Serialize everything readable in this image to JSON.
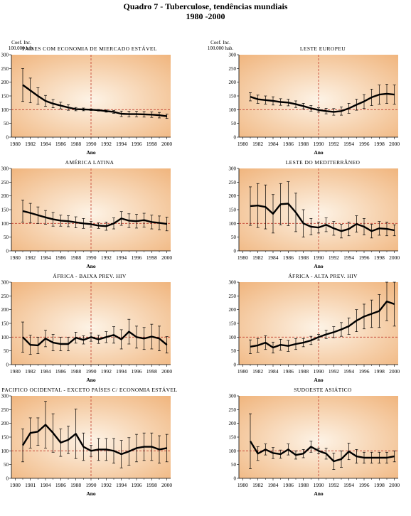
{
  "page": {
    "title_line1": "Quadro 7 - Tuberculose,  tendências mundiais",
    "title_line2": "1980 -2000",
    "ylabel_line1": "Coef. Inc.",
    "ylabel_line2": "100.000 hab.",
    "xlabel": "Ano"
  },
  "style": {
    "line_color": "#000000",
    "ref_line_color": "#c0392b",
    "bg_center": "#fdf3e6",
    "bg_edge": "#f0b47c"
  },
  "chart_data": [
    {
      "type": "line",
      "title": "PAÍSES COM ECONOMIA DE MIERCADO ESTÁVEL",
      "xlabel": "Ano",
      "ylabel": "Coef. Inc. 100.000 hab.",
      "x_ticks": [
        1980,
        1982,
        1984,
        1986,
        1988,
        1990,
        1992,
        1994,
        1996,
        1998,
        2000
      ],
      "y_ticks": [
        0,
        50,
        100,
        150,
        200,
        250,
        300
      ],
      "xlim": [
        1979.5,
        2000.5
      ],
      "ylim": [
        0,
        300
      ],
      "reference_line_y": 100,
      "reference_line_x": 1990,
      "x": [
        1981,
        1982,
        1983,
        1984,
        1985,
        1986,
        1987,
        1988,
        1989,
        1990,
        1991,
        1992,
        1993,
        1994,
        1995,
        1996,
        1997,
        1998,
        1999,
        2000
      ],
      "values": [
        190,
        170,
        150,
        132,
        122,
        115,
        108,
        102,
        101,
        100,
        98,
        95,
        92,
        85,
        84,
        84,
        83,
        82,
        80,
        76
      ],
      "error": [
        60,
        45,
        30,
        20,
        15,
        12,
        10,
        6,
        5,
        3,
        3,
        4,
        5,
        10,
        10,
        10,
        10,
        10,
        10,
        8
      ]
    },
    {
      "type": "line",
      "title": "LESTE EUROPEU",
      "xlabel": "Ano",
      "x_ticks": [
        1980,
        1982,
        1984,
        1986,
        1988,
        1990,
        1992,
        1994,
        1996,
        1998,
        2000
      ],
      "y_ticks": [
        0,
        50,
        100,
        150,
        200,
        250,
        300
      ],
      "xlim": [
        1979.5,
        2000.5
      ],
      "ylim": [
        0,
        300
      ],
      "reference_line_y": 100,
      "reference_line_x": 1990,
      "x": [
        1981,
        1982,
        1983,
        1984,
        1985,
        1986,
        1987,
        1988,
        1989,
        1990,
        1991,
        1992,
        1993,
        1994,
        1995,
        1996,
        1997,
        1998,
        1999,
        2000
      ],
      "values": [
        147,
        138,
        135,
        132,
        128,
        126,
        120,
        113,
        105,
        99,
        95,
        92,
        95,
        105,
        118,
        130,
        145,
        155,
        158,
        155
      ],
      "error": [
        15,
        15,
        15,
        15,
        12,
        12,
        12,
        10,
        10,
        8,
        10,
        12,
        15,
        18,
        20,
        25,
        30,
        35,
        35,
        35
      ]
    },
    {
      "type": "line",
      "title": "AMÉRICA LATINA",
      "xlabel": "Ano",
      "x_ticks": [
        1980,
        1982,
        1984,
        1986,
        1988,
        1990,
        1992,
        1994,
        1996,
        1998,
        2000
      ],
      "y_ticks": [
        0,
        50,
        100,
        150,
        200,
        250,
        300
      ],
      "xlim": [
        1979.5,
        2000.5
      ],
      "ylim": [
        0,
        300
      ],
      "reference_line_y": 100,
      "reference_line_x": 1990,
      "x": [
        1981,
        1982,
        1983,
        1984,
        1985,
        1986,
        1987,
        1988,
        1989,
        1990,
        1991,
        1992,
        1993,
        1994,
        1995,
        1996,
        1997,
        1998,
        1999,
        2000
      ],
      "values": [
        145,
        138,
        130,
        122,
        115,
        110,
        108,
        104,
        100,
        97,
        92,
        90,
        100,
        118,
        110,
        108,
        112,
        105,
        102,
        98
      ],
      "error": [
        40,
        35,
        30,
        25,
        25,
        20,
        20,
        20,
        18,
        10,
        10,
        15,
        20,
        25,
        25,
        25,
        25,
        25,
        25,
        25
      ]
    },
    {
      "type": "line",
      "title": "LESTE DO MEDITERRÂNEO",
      "xlabel": "Ano",
      "x_ticks": [
        1980,
        1982,
        1984,
        1986,
        1988,
        1990,
        1992,
        1994,
        1996,
        1998,
        2000
      ],
      "y_ticks": [
        0,
        50,
        100,
        150,
        200,
        250,
        300
      ],
      "xlim": [
        1979.5,
        2000.5
      ],
      "ylim": [
        0,
        300
      ],
      "reference_line_y": 100,
      "reference_line_x": 1990,
      "x": [
        1981,
        1982,
        1983,
        1984,
        1985,
        1986,
        1987,
        1988,
        1989,
        1990,
        1991,
        1992,
        1993,
        1994,
        1995,
        1996,
        1997,
        1998,
        1999,
        2000
      ],
      "values": [
        163,
        165,
        160,
        135,
        170,
        172,
        140,
        100,
        88,
        85,
        95,
        82,
        72,
        80,
        98,
        88,
        72,
        82,
        80,
        75
      ],
      "error": [
        70,
        80,
        80,
        70,
        75,
        80,
        70,
        50,
        30,
        20,
        25,
        25,
        25,
        25,
        30,
        30,
        25,
        25,
        25,
        20
      ]
    },
    {
      "type": "line",
      "title": "ÁFRICA - BAIXA PREV. HIV",
      "xlabel": "Ano",
      "x_ticks": [
        1980,
        1982,
        1984,
        1986,
        1988,
        1990,
        1992,
        1994,
        1996,
        1998,
        2000
      ],
      "y_ticks": [
        0,
        50,
        100,
        150,
        200,
        250,
        300
      ],
      "xlim": [
        1979.5,
        2000.5
      ],
      "ylim": [
        0,
        300
      ],
      "reference_line_y": 100,
      "reference_line_x": 1990,
      "x": [
        1981,
        1982,
        1983,
        1984,
        1985,
        1986,
        1987,
        1988,
        1989,
        1990,
        1991,
        1992,
        1993,
        1994,
        1995,
        1996,
        1997,
        1998,
        1999,
        2000
      ],
      "values": [
        100,
        72,
        70,
        95,
        80,
        75,
        75,
        98,
        90,
        100,
        92,
        100,
        108,
        92,
        120,
        100,
        95,
        102,
        95,
        72
      ],
      "error": [
        55,
        35,
        30,
        30,
        30,
        25,
        25,
        20,
        15,
        15,
        15,
        20,
        30,
        35,
        45,
        40,
        40,
        45,
        45,
        30
      ]
    },
    {
      "type": "line",
      "title": "ÁFRICA - ALTA PREV. HIV",
      "xlabel": "Ano",
      "x_ticks": [
        1980,
        1982,
        1984,
        1986,
        1988,
        1990,
        1992,
        1994,
        1996,
        1998,
        2000
      ],
      "y_ticks": [
        0,
        50,
        100,
        150,
        200,
        250,
        300
      ],
      "xlim": [
        1979.5,
        2000.5
      ],
      "ylim": [
        0,
        300
      ],
      "reference_line_y": 100,
      "reference_line_x": 1990,
      "x": [
        1981,
        1982,
        1983,
        1984,
        1985,
        1986,
        1987,
        1988,
        1989,
        1990,
        1991,
        1992,
        1993,
        1994,
        1995,
        1996,
        1997,
        1998,
        1999,
        2000
      ],
      "values": [
        65,
        70,
        80,
        62,
        72,
        68,
        75,
        80,
        88,
        100,
        110,
        118,
        128,
        140,
        160,
        175,
        185,
        195,
        230,
        220
      ],
      "error": [
        25,
        25,
        25,
        20,
        20,
        20,
        20,
        15,
        15,
        10,
        15,
        20,
        25,
        30,
        40,
        45,
        50,
        60,
        70,
        80
      ]
    },
    {
      "type": "line",
      "title": "PACIFICO OCIDENTAL - EXCETO PAÍSES C/ ECONOMIA ESTÁVEL",
      "xlabel": "Ano",
      "x_ticks": [
        1980,
        1981,
        1984,
        1986,
        1988,
        1990,
        1992,
        1994,
        1996,
        1998,
        2000
      ],
      "y_ticks": [
        0,
        50,
        100,
        150,
        200,
        250,
        300
      ],
      "xlim": [
        1979.5,
        2000.5
      ],
      "ylim": [
        0,
        300
      ],
      "reference_line_y": 100,
      "reference_line_x": 1990,
      "x": [
        1981,
        1982,
        1983,
        1984,
        1985,
        1986,
        1987,
        1988,
        1989,
        1990,
        1991,
        1992,
        1993,
        1994,
        1995,
        1996,
        1997,
        1998,
        1999,
        2000
      ],
      "values": [
        120,
        165,
        170,
        195,
        165,
        130,
        140,
        162,
        115,
        100,
        105,
        105,
        100,
        88,
        98,
        110,
        115,
        115,
        105,
        110
      ],
      "error": [
        60,
        55,
        50,
        85,
        70,
        50,
        50,
        90,
        50,
        20,
        40,
        40,
        45,
        50,
        50,
        50,
        50,
        50,
        50,
        50
      ]
    },
    {
      "type": "line",
      "title": "SUDOESTE ASIÁTICO",
      "xlabel": "Ano",
      "x_ticks": [
        1980,
        1982,
        1984,
        1986,
        1988,
        1990,
        1992,
        1994,
        1996,
        1998,
        2000
      ],
      "y_ticks": [
        0,
        50,
        100,
        150,
        200,
        250,
        300
      ],
      "xlim": [
        1979.5,
        2000.5
      ],
      "ylim": [
        0,
        300
      ],
      "reference_line_y": 100,
      "reference_line_x": 1990,
      "x": [
        1981,
        1982,
        1983,
        1984,
        1985,
        1986,
        1987,
        1988,
        1989,
        1990,
        1991,
        1992,
        1993,
        1994,
        1995,
        1996,
        1997,
        1998,
        1999,
        2000
      ],
      "values": [
        135,
        90,
        105,
        92,
        88,
        105,
        85,
        90,
        115,
        100,
        90,
        62,
        70,
        98,
        80,
        75,
        75,
        75,
        75,
        80
      ],
      "error": [
        100,
        25,
        20,
        20,
        15,
        20,
        15,
        15,
        20,
        10,
        20,
        30,
        30,
        30,
        25,
        20,
        20,
        20,
        20,
        20
      ]
    }
  ]
}
